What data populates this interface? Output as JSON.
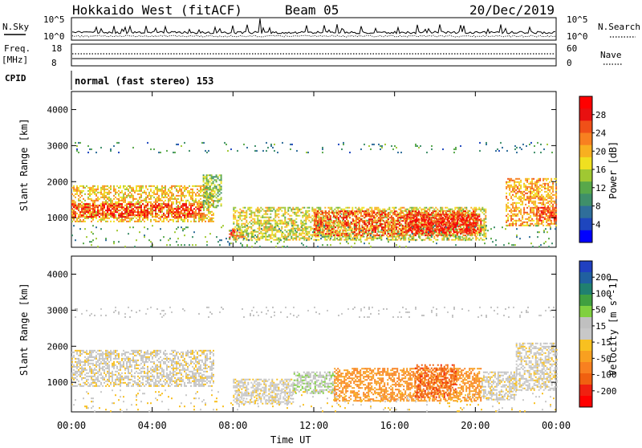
{
  "header": {
    "site": "Hokkaido West (fitACF)",
    "beam": "Beam 05",
    "date": "20/Dec/2019"
  },
  "noise_panel": {
    "left_label": "N.Sky",
    "right_label": "N.Search",
    "ticks_left": [
      "10^5",
      "10^0"
    ],
    "ticks_right": [
      "10^5",
      "10^0"
    ]
  },
  "freq_panel": {
    "left_label_1": "Freq.",
    "left_label_2": "[MHz]",
    "right_label": "Nave",
    "ticks_left": [
      "18",
      "8"
    ],
    "ticks_right": [
      "60",
      "0"
    ]
  },
  "cpid_panel": {
    "label": "CPID",
    "text": "normal (fast stereo) 153"
  },
  "chart_data": [
    {
      "type": "heatmap",
      "quantity": "power",
      "xlabel": "",
      "ylabel": "Slant Range [km]",
      "x_ticks": [
        "00:00",
        "04:00",
        "08:00",
        "12:00",
        "16:00",
        "20:00",
        "00:00"
      ],
      "y_ticks": [
        "1000",
        "2000",
        "3000",
        "4000"
      ],
      "xlim_hours": [
        0,
        24
      ],
      "ylim_km": [
        180,
        4500
      ],
      "colorbar_label": "Power [dB]",
      "colorbar_ticks": [
        "28",
        "24",
        "20",
        "16",
        "12",
        "8",
        "4"
      ],
      "colorbar_colors": [
        "#0000ff",
        "#1e46be",
        "#2f6e9a",
        "#3f8f6a",
        "#58a84a",
        "#a0c832",
        "#f0e020",
        "#f8b020",
        "#f88020",
        "#f05018",
        "#e81010",
        "#ff0000"
      ],
      "regions": [
        {
          "t": [
            0.0,
            7.0
          ],
          "r": [
            900,
            1900
          ],
          "level": 18
        },
        {
          "t": [
            0.0,
            6.5
          ],
          "r": [
            1000,
            1400
          ],
          "level": 26
        },
        {
          "t": [
            6.5,
            7.4
          ],
          "r": [
            1300,
            2200
          ],
          "level": 12
        },
        {
          "t": [
            7.8,
            8.5
          ],
          "r": [
            400,
            700
          ],
          "level": 26
        },
        {
          "t": [
            8.0,
            20.5
          ],
          "r": [
            400,
            1300
          ],
          "level": 16
        },
        {
          "t": [
            12.0,
            20.0
          ],
          "r": [
            500,
            1200
          ],
          "level": 24
        },
        {
          "t": [
            16.5,
            20.3
          ],
          "r": [
            600,
            1100
          ],
          "level": 28
        },
        {
          "t": [
            21.5,
            24.0
          ],
          "r": [
            800,
            2100
          ],
          "level": 20
        },
        {
          "t": [
            23.0,
            24.0
          ],
          "r": [
            900,
            1300
          ],
          "level": 26
        },
        {
          "t": [
            0.0,
            24.0
          ],
          "r": [
            2800,
            3100
          ],
          "level": 8,
          "sparse": true
        },
        {
          "t": [
            0.0,
            24.0
          ],
          "r": [
            180,
            800
          ],
          "level": 10,
          "sparse": true
        }
      ]
    },
    {
      "type": "heatmap",
      "quantity": "velocity",
      "xlabel": "Time UT",
      "ylabel": "Slant Range [km]",
      "x_ticks": [
        "00:00",
        "04:00",
        "08:00",
        "12:00",
        "16:00",
        "20:00",
        "00:00"
      ],
      "y_ticks": [
        "1000",
        "2000",
        "3000",
        "4000"
      ],
      "xlim_hours": [
        0,
        24
      ],
      "ylim_km": [
        180,
        4500
      ],
      "colorbar_label": "Velocity [m s^-1]",
      "colorbar_ticks": [
        "200",
        "100",
        "50",
        "15",
        "-15",
        "-50",
        "-100",
        "-200"
      ],
      "colorbar_colors": [
        "#2040c0",
        "#2060a0",
        "#208070",
        "#40a040",
        "#80d040",
        "#c0c0c0",
        "#c8c8c8",
        "#f8c020",
        "#f8a020",
        "#f88020",
        "#f06010",
        "#f02010",
        "#ff0000"
      ],
      "regions": [
        {
          "t": [
            0.0,
            7.0
          ],
          "r": [
            900,
            1900
          ],
          "vel": 0
        },
        {
          "t": [
            8.0,
            11.0
          ],
          "r": [
            400,
            1100
          ],
          "vel": 0
        },
        {
          "t": [
            11.0,
            13.0
          ],
          "r": [
            700,
            1300
          ],
          "vel": 40
        },
        {
          "t": [
            13.0,
            20.3
          ],
          "r": [
            500,
            1400
          ],
          "vel": -80
        },
        {
          "t": [
            17.0,
            19.0
          ],
          "r": [
            600,
            1500
          ],
          "vel": -130
        },
        {
          "t": [
            20.3,
            22.0
          ],
          "r": [
            500,
            1300
          ],
          "vel": 0
        },
        {
          "t": [
            22.0,
            24.0
          ],
          "r": [
            800,
            2100
          ],
          "vel": 0
        },
        {
          "t": [
            0.0,
            24.0
          ],
          "r": [
            2800,
            3100
          ],
          "vel": 20,
          "sparse": true
        },
        {
          "t": [
            0.0,
            24.0
          ],
          "r": [
            180,
            800
          ],
          "vel": -20,
          "sparse": true
        }
      ]
    }
  ],
  "colors": {
    "axis": "#000000",
    "background": "#ffffff"
  }
}
